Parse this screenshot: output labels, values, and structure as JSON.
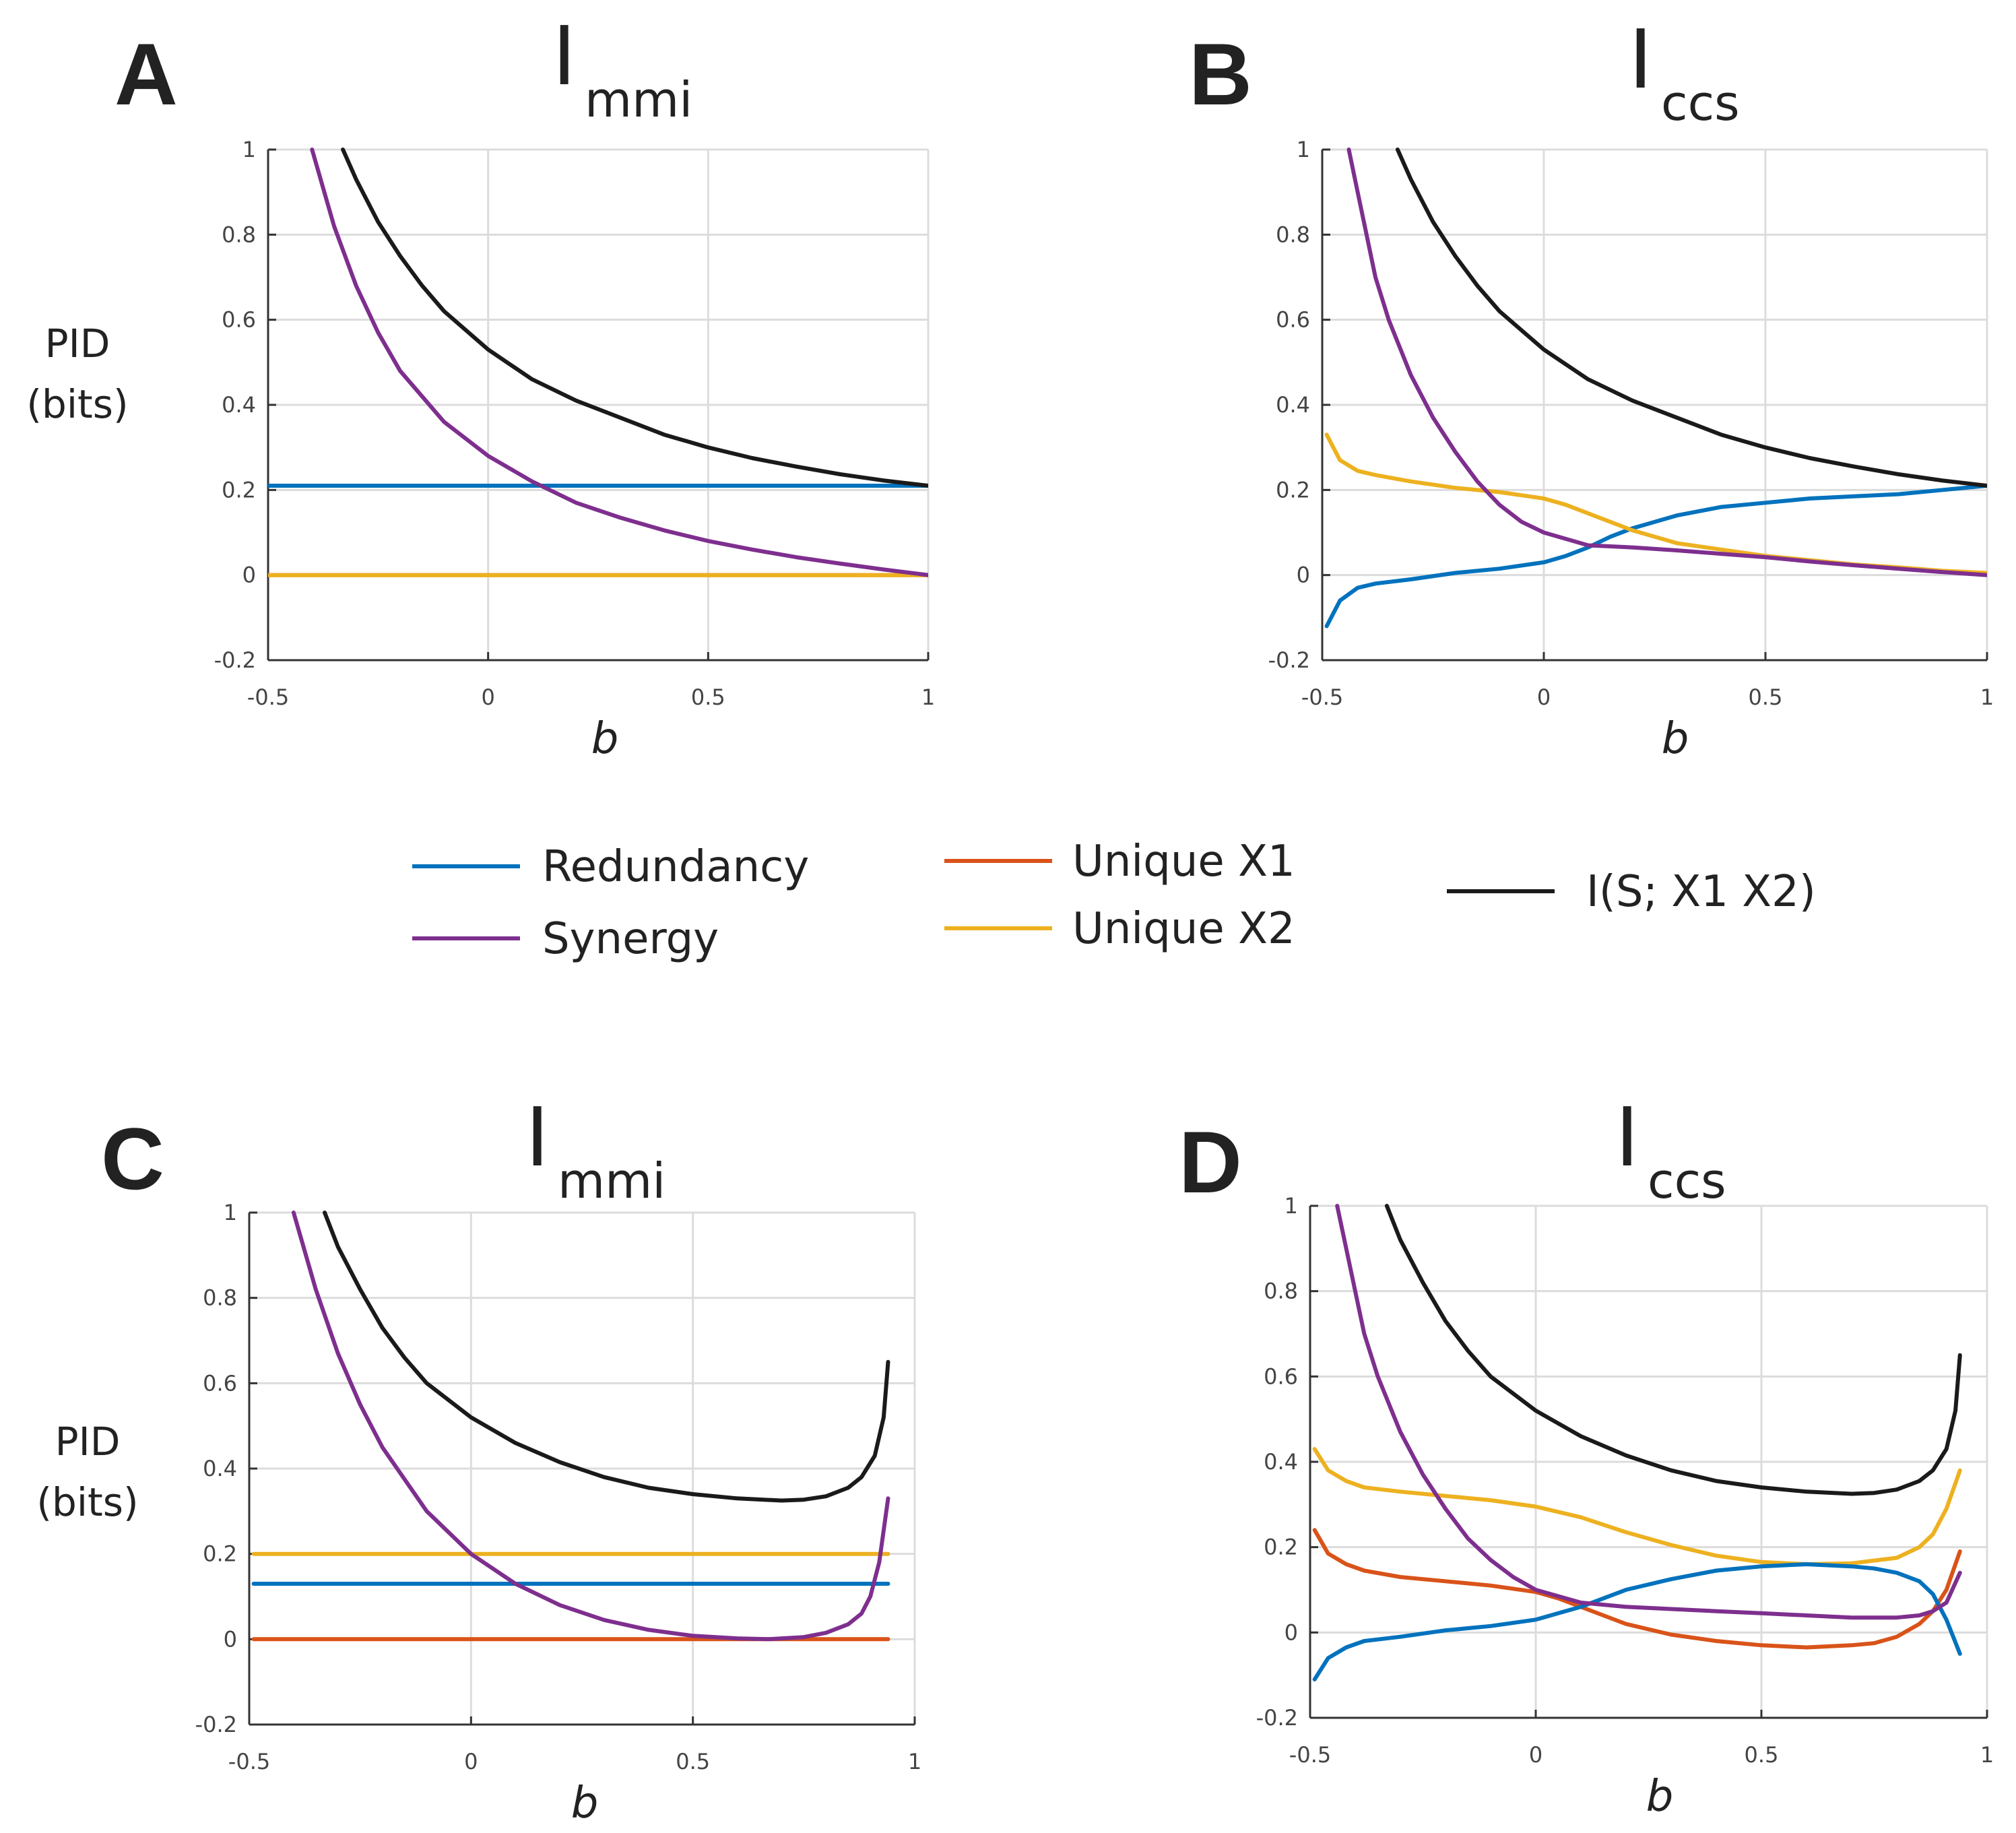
{
  "colors": {
    "redundancy": "#0072BD",
    "synergy": "#7E2F8E",
    "unique_x1": "#D95319",
    "unique_x2": "#EDB120",
    "total": "#1a1a1a"
  },
  "legend": [
    {
      "key": "redundancy",
      "label": "Redundancy"
    },
    {
      "key": "synergy",
      "label": "Synergy"
    },
    {
      "key": "unique_x1",
      "label": "Unique X1"
    },
    {
      "key": "unique_x2",
      "label": "Unique X2"
    },
    {
      "key": "total",
      "label": "I(S; X1 X2)"
    }
  ],
  "chart_data": [
    {
      "id": "A",
      "type": "line",
      "panel_label": "A",
      "title_main": "I",
      "title_sub": "mmi",
      "xlabel": "b",
      "ylabel_lines": [
        "PID",
        "(bits)"
      ],
      "xlim": [
        -0.5,
        1
      ],
      "ylim": [
        -0.2,
        1
      ],
      "xticks": [
        {
          "v": -0.5,
          "label": "-0.5"
        },
        {
          "v": 0,
          "label": "0"
        },
        {
          "v": 0.5,
          "label": "0.5"
        },
        {
          "v": 1,
          "label": "1"
        }
      ],
      "yticks": [
        {
          "v": -0.2,
          "label": "-0.2"
        },
        {
          "v": 0,
          "label": "0"
        },
        {
          "v": 0.2,
          "label": "0.2"
        },
        {
          "v": 0.4,
          "label": "0.4"
        },
        {
          "v": 0.6,
          "label": "0.6"
        },
        {
          "v": 0.8,
          "label": "0.8"
        },
        {
          "v": 1,
          "label": "1"
        }
      ],
      "series": [
        {
          "name": "Redundancy",
          "key": "redundancy",
          "x": [
            -0.5,
            1
          ],
          "y": [
            0.21,
            0.21
          ]
        },
        {
          "name": "Unique X1",
          "key": "unique_x1",
          "x": [
            -0.5,
            1
          ],
          "y": [
            0,
            0
          ]
        },
        {
          "name": "Unique X2",
          "key": "unique_x2",
          "x": [
            -0.5,
            1
          ],
          "y": [
            0,
            0
          ]
        },
        {
          "name": "Synergy",
          "key": "synergy",
          "x": [
            -0.4,
            -0.35,
            -0.3,
            -0.25,
            -0.2,
            -0.1,
            0,
            0.1,
            0.2,
            0.3,
            0.4,
            0.5,
            0.6,
            0.7,
            0.8,
            0.9,
            1
          ],
          "y": [
            1,
            0.82,
            0.68,
            0.57,
            0.48,
            0.36,
            0.28,
            0.22,
            0.17,
            0.135,
            0.105,
            0.08,
            0.06,
            0.042,
            0.027,
            0.013,
            0
          ]
        },
        {
          "name": "I(S; X1 X2)",
          "key": "total",
          "x": [
            -0.33,
            -0.3,
            -0.25,
            -0.2,
            -0.15,
            -0.1,
            0,
            0.1,
            0.2,
            0.3,
            0.4,
            0.5,
            0.6,
            0.7,
            0.8,
            0.9,
            1
          ],
          "y": [
            1,
            0.93,
            0.83,
            0.75,
            0.68,
            0.62,
            0.53,
            0.46,
            0.41,
            0.37,
            0.33,
            0.3,
            0.275,
            0.255,
            0.237,
            0.222,
            0.21
          ]
        }
      ]
    },
    {
      "id": "B",
      "type": "line",
      "panel_label": "B",
      "title_main": "I",
      "title_sub": "ccs",
      "xlabel": "b",
      "ylabel_lines": [],
      "xlim": [
        -0.5,
        1
      ],
      "ylim": [
        -0.2,
        1
      ],
      "xticks": [
        {
          "v": -0.5,
          "label": "-0.5"
        },
        {
          "v": 0,
          "label": "0"
        },
        {
          "v": 0.5,
          "label": "0.5"
        },
        {
          "v": 1,
          "label": "1"
        }
      ],
      "yticks": [
        {
          "v": -0.2,
          "label": "-0.2"
        },
        {
          "v": 0,
          "label": "0"
        },
        {
          "v": 0.2,
          "label": "0.2"
        },
        {
          "v": 0.4,
          "label": "0.4"
        },
        {
          "v": 0.6,
          "label": "0.6"
        },
        {
          "v": 0.8,
          "label": "0.8"
        },
        {
          "v": 1,
          "label": "1"
        }
      ],
      "series": [
        {
          "name": "Redundancy",
          "key": "redundancy",
          "x": [
            -0.49,
            -0.46,
            -0.42,
            -0.38,
            -0.3,
            -0.2,
            -0.1,
            0,
            0.05,
            0.1,
            0.15,
            0.2,
            0.3,
            0.4,
            0.5,
            0.6,
            0.7,
            0.8,
            0.9,
            1
          ],
          "y": [
            -0.12,
            -0.06,
            -0.03,
            -0.02,
            -0.01,
            0.005,
            0.015,
            0.03,
            0.045,
            0.065,
            0.09,
            0.11,
            0.14,
            0.16,
            0.17,
            0.18,
            0.185,
            0.19,
            0.2,
            0.21
          ]
        },
        {
          "name": "Unique X2",
          "key": "unique_x2",
          "x": [
            -0.49,
            -0.46,
            -0.42,
            -0.38,
            -0.3,
            -0.2,
            -0.1,
            0,
            0.05,
            0.1,
            0.15,
            0.2,
            0.3,
            0.4,
            0.5,
            0.6,
            0.7,
            0.8,
            0.9,
            1
          ],
          "y": [
            0.33,
            0.27,
            0.245,
            0.235,
            0.22,
            0.205,
            0.195,
            0.18,
            0.165,
            0.145,
            0.125,
            0.105,
            0.075,
            0.06,
            0.045,
            0.035,
            0.025,
            0.018,
            0.01,
            0.005
          ]
        },
        {
          "name": "Synergy",
          "key": "synergy",
          "x": [
            -0.44,
            -0.42,
            -0.4,
            -0.38,
            -0.35,
            -0.3,
            -0.25,
            -0.2,
            -0.15,
            -0.1,
            -0.05,
            0,
            0.05,
            0.1,
            0.2,
            0.3,
            0.4,
            0.5,
            0.6,
            0.7,
            0.8,
            0.9,
            1
          ],
          "y": [
            1,
            0.9,
            0.8,
            0.7,
            0.6,
            0.47,
            0.37,
            0.29,
            0.22,
            0.165,
            0.125,
            0.1,
            0.085,
            0.07,
            0.065,
            0.058,
            0.05,
            0.042,
            0.032,
            0.023,
            0.015,
            0.007,
            0
          ]
        },
        {
          "name": "I(S; X1 X2)",
          "key": "total",
          "x": [
            -0.33,
            -0.3,
            -0.25,
            -0.2,
            -0.15,
            -0.1,
            0,
            0.1,
            0.2,
            0.3,
            0.4,
            0.5,
            0.6,
            0.7,
            0.8,
            0.9,
            1
          ],
          "y": [
            1,
            0.93,
            0.83,
            0.75,
            0.68,
            0.62,
            0.53,
            0.46,
            0.41,
            0.37,
            0.33,
            0.3,
            0.275,
            0.255,
            0.237,
            0.222,
            0.21
          ]
        }
      ]
    },
    {
      "id": "C",
      "type": "line",
      "panel_label": "C",
      "title_main": "I",
      "title_sub": "mmi",
      "xlabel": "b",
      "ylabel_lines": [
        "PID",
        "(bits)"
      ],
      "xlim": [
        -0.5,
        1
      ],
      "ylim": [
        -0.2,
        1
      ],
      "xticks": [
        {
          "v": -0.5,
          "label": "-0.5"
        },
        {
          "v": 0,
          "label": "0"
        },
        {
          "v": 0.5,
          "label": "0.5"
        },
        {
          "v": 1,
          "label": "1"
        }
      ],
      "yticks": [
        {
          "v": -0.2,
          "label": "-0.2"
        },
        {
          "v": 0,
          "label": "0"
        },
        {
          "v": 0.2,
          "label": "0.2"
        },
        {
          "v": 0.4,
          "label": "0.4"
        },
        {
          "v": 0.6,
          "label": "0.6"
        },
        {
          "v": 0.8,
          "label": "0.8"
        },
        {
          "v": 1,
          "label": "1"
        }
      ],
      "series": [
        {
          "name": "Unique X2",
          "key": "unique_x2",
          "x": [
            -0.49,
            0.94
          ],
          "y": [
            0.2,
            0.2
          ]
        },
        {
          "name": "Redundancy",
          "key": "redundancy",
          "x": [
            -0.49,
            0.94
          ],
          "y": [
            0.13,
            0.13
          ]
        },
        {
          "name": "Unique X1",
          "key": "unique_x1",
          "x": [
            -0.49,
            0.94
          ],
          "y": [
            0,
            0
          ]
        },
        {
          "name": "Synergy",
          "key": "synergy",
          "x": [
            -0.4,
            -0.35,
            -0.3,
            -0.25,
            -0.2,
            -0.1,
            0,
            0.1,
            0.2,
            0.3,
            0.4,
            0.5,
            0.6,
            0.67,
            0.75,
            0.8,
            0.85,
            0.88,
            0.9,
            0.92,
            0.94
          ],
          "y": [
            1,
            0.82,
            0.67,
            0.55,
            0.45,
            0.3,
            0.2,
            0.13,
            0.08,
            0.045,
            0.022,
            0.008,
            0.002,
            0,
            0.005,
            0.015,
            0.035,
            0.06,
            0.1,
            0.18,
            0.33
          ]
        },
        {
          "name": "I(S; X1 X2)",
          "key": "total",
          "x": [
            -0.33,
            -0.3,
            -0.25,
            -0.2,
            -0.15,
            -0.1,
            0,
            0.1,
            0.2,
            0.3,
            0.4,
            0.5,
            0.6,
            0.7,
            0.75,
            0.8,
            0.85,
            0.88,
            0.91,
            0.93,
            0.94
          ],
          "y": [
            1,
            0.92,
            0.82,
            0.73,
            0.66,
            0.6,
            0.52,
            0.46,
            0.415,
            0.38,
            0.355,
            0.34,
            0.33,
            0.325,
            0.327,
            0.335,
            0.355,
            0.38,
            0.43,
            0.52,
            0.65
          ]
        }
      ]
    },
    {
      "id": "D",
      "type": "line",
      "panel_label": "D",
      "title_main": "I",
      "title_sub": "ccs",
      "xlabel": "b",
      "ylabel_lines": [],
      "xlim": [
        -0.5,
        1
      ],
      "ylim": [
        -0.2,
        1
      ],
      "xticks": [
        {
          "v": -0.5,
          "label": "-0.5"
        },
        {
          "v": 0,
          "label": "0"
        },
        {
          "v": 0.5,
          "label": "0.5"
        },
        {
          "v": 1,
          "label": "1"
        }
      ],
      "yticks": [
        {
          "v": -0.2,
          "label": "-0.2"
        },
        {
          "v": 0,
          "label": "0"
        },
        {
          "v": 0.2,
          "label": "0.2"
        },
        {
          "v": 0.4,
          "label": "0.4"
        },
        {
          "v": 0.6,
          "label": "0.6"
        },
        {
          "v": 0.8,
          "label": "0.8"
        },
        {
          "v": 1,
          "label": "1"
        }
      ],
      "series": [
        {
          "name": "Unique X2",
          "key": "unique_x2",
          "x": [
            -0.49,
            -0.46,
            -0.42,
            -0.38,
            -0.3,
            -0.2,
            -0.1,
            0,
            0.1,
            0.2,
            0.3,
            0.4,
            0.5,
            0.6,
            0.7,
            0.8,
            0.85,
            0.88,
            0.91,
            0.94
          ],
          "y": [
            0.43,
            0.38,
            0.355,
            0.34,
            0.33,
            0.32,
            0.31,
            0.295,
            0.27,
            0.235,
            0.205,
            0.18,
            0.165,
            0.16,
            0.162,
            0.175,
            0.2,
            0.23,
            0.29,
            0.38
          ]
        },
        {
          "name": "Unique X1",
          "key": "unique_x1",
          "x": [
            -0.49,
            -0.46,
            -0.42,
            -0.38,
            -0.3,
            -0.2,
            -0.1,
            0,
            0.05,
            0.1,
            0.15,
            0.2,
            0.3,
            0.4,
            0.5,
            0.6,
            0.7,
            0.75,
            0.8,
            0.85,
            0.88,
            0.91,
            0.94
          ],
          "y": [
            0.24,
            0.185,
            0.16,
            0.145,
            0.13,
            0.12,
            0.11,
            0.095,
            0.08,
            0.06,
            0.04,
            0.02,
            -0.005,
            -0.02,
            -0.03,
            -0.035,
            -0.03,
            -0.025,
            -0.01,
            0.02,
            0.05,
            0.1,
            0.19
          ]
        },
        {
          "name": "Redundancy",
          "key": "redundancy",
          "x": [
            -0.49,
            -0.46,
            -0.42,
            -0.38,
            -0.3,
            -0.2,
            -0.1,
            0,
            0.05,
            0.1,
            0.15,
            0.2,
            0.3,
            0.4,
            0.5,
            0.6,
            0.7,
            0.75,
            0.8,
            0.85,
            0.88,
            0.91,
            0.94
          ],
          "y": [
            -0.11,
            -0.06,
            -0.035,
            -0.02,
            -0.01,
            0.005,
            0.015,
            0.03,
            0.045,
            0.06,
            0.08,
            0.1,
            0.125,
            0.145,
            0.155,
            0.16,
            0.155,
            0.15,
            0.14,
            0.12,
            0.09,
            0.03,
            -0.05
          ]
        },
        {
          "name": "Synergy",
          "key": "synergy",
          "x": [
            -0.44,
            -0.42,
            -0.4,
            -0.38,
            -0.35,
            -0.3,
            -0.25,
            -0.2,
            -0.15,
            -0.1,
            -0.05,
            0,
            0.05,
            0.1,
            0.2,
            0.3,
            0.4,
            0.5,
            0.6,
            0.7,
            0.8,
            0.85,
            0.88,
            0.91,
            0.94
          ],
          "y": [
            1,
            0.9,
            0.8,
            0.7,
            0.6,
            0.47,
            0.37,
            0.29,
            0.22,
            0.17,
            0.13,
            0.1,
            0.085,
            0.07,
            0.06,
            0.055,
            0.05,
            0.045,
            0.04,
            0.035,
            0.035,
            0.04,
            0.05,
            0.07,
            0.14
          ]
        },
        {
          "name": "I(S; X1 X2)",
          "key": "total",
          "x": [
            -0.33,
            -0.3,
            -0.25,
            -0.2,
            -0.15,
            -0.1,
            0,
            0.1,
            0.2,
            0.3,
            0.4,
            0.5,
            0.6,
            0.7,
            0.75,
            0.8,
            0.85,
            0.88,
            0.91,
            0.93,
            0.94
          ],
          "y": [
            1,
            0.92,
            0.82,
            0.73,
            0.66,
            0.6,
            0.52,
            0.46,
            0.415,
            0.38,
            0.355,
            0.34,
            0.33,
            0.325,
            0.327,
            0.335,
            0.355,
            0.38,
            0.43,
            0.52,
            0.65
          ]
        }
      ]
    }
  ]
}
